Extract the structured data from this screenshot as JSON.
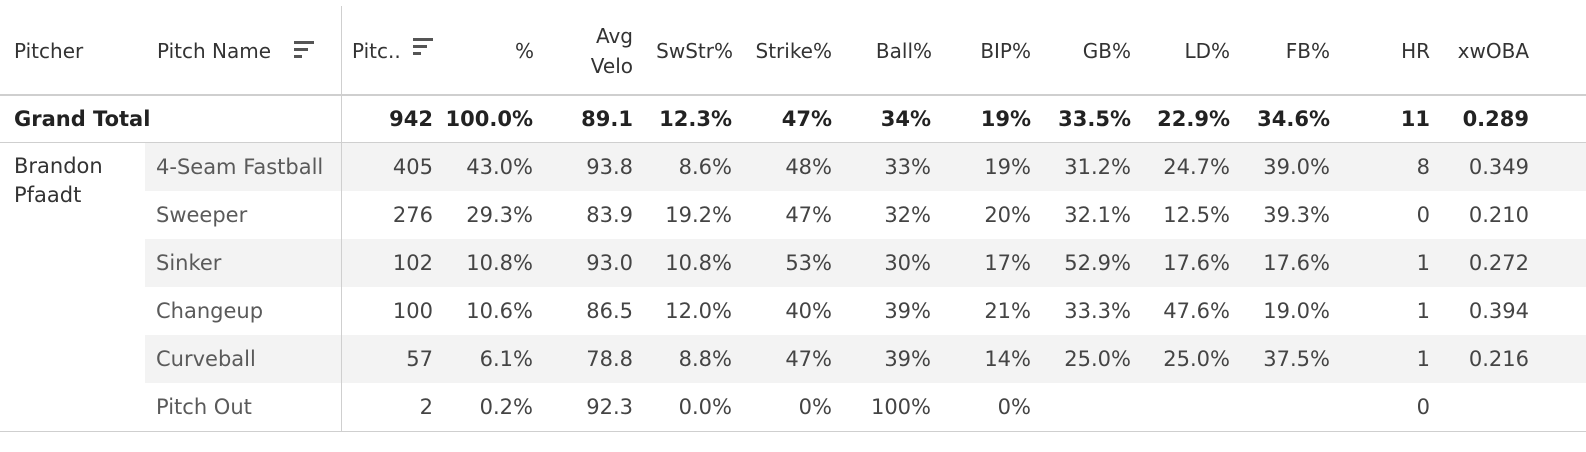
{
  "chart_data": {
    "type": "table",
    "headers": {
      "pitcher": "Pitcher",
      "pitch_name": "Pitch Name",
      "pitches": "Pitc..",
      "pct": "%",
      "avg_velo_1": "Avg",
      "avg_velo_2": "Velo",
      "swstr": "SwStr%",
      "strike": "Strike%",
      "ball": "Ball%",
      "bip": "BIP%",
      "gb": "GB%",
      "ld": "LD%",
      "fb": "FB%",
      "hr": "HR",
      "xwoba": "xwOBA"
    },
    "columns": [
      "pitches",
      "pct",
      "velo",
      "swstr",
      "strike",
      "ball",
      "bip",
      "gb",
      "ld",
      "fb",
      "hr",
      "xwoba"
    ],
    "grand_total": {
      "label": "Grand Total",
      "pitches": "942",
      "pct": "100.0%",
      "velo": "89.1",
      "swstr": "12.3%",
      "strike": "47%",
      "ball": "34%",
      "bip": "19%",
      "gb": "33.5%",
      "ld": "22.9%",
      "fb": "34.6%",
      "hr": "11",
      "xwoba": "0.289"
    },
    "pitcher_name_line1": "Brandon",
    "pitcher_name_line2": "Pfaadt",
    "rows": [
      {
        "name": "4-Seam Fastball",
        "pitches": "405",
        "pct": "43.0%",
        "velo": "93.8",
        "swstr": "8.6%",
        "strike": "48%",
        "ball": "33%",
        "bip": "19%",
        "gb": "31.2%",
        "ld": "24.7%",
        "fb": "39.0%",
        "hr": "8",
        "xwoba": "0.349"
      },
      {
        "name": "Sweeper",
        "pitches": "276",
        "pct": "29.3%",
        "velo": "83.9",
        "swstr": "19.2%",
        "strike": "47%",
        "ball": "32%",
        "bip": "20%",
        "gb": "32.1%",
        "ld": "12.5%",
        "fb": "39.3%",
        "hr": "0",
        "xwoba": "0.210"
      },
      {
        "name": "Sinker",
        "pitches": "102",
        "pct": "10.8%",
        "velo": "93.0",
        "swstr": "10.8%",
        "strike": "53%",
        "ball": "30%",
        "bip": "17%",
        "gb": "52.9%",
        "ld": "17.6%",
        "fb": "17.6%",
        "hr": "1",
        "xwoba": "0.272"
      },
      {
        "name": "Changeup",
        "pitches": "100",
        "pct": "10.6%",
        "velo": "86.5",
        "swstr": "12.0%",
        "strike": "40%",
        "ball": "39%",
        "bip": "21%",
        "gb": "33.3%",
        "ld": "47.6%",
        "fb": "19.0%",
        "hr": "1",
        "xwoba": "0.394"
      },
      {
        "name": "Curveball",
        "pitches": "57",
        "pct": "6.1%",
        "velo": "78.8",
        "swstr": "8.8%",
        "strike": "47%",
        "ball": "39%",
        "bip": "14%",
        "gb": "25.0%",
        "ld": "25.0%",
        "fb": "37.5%",
        "hr": "1",
        "xwoba": "0.216"
      },
      {
        "name": "Pitch Out",
        "pitches": "2",
        "pct": "0.2%",
        "velo": "92.3",
        "swstr": "0.0%",
        "strike": "0%",
        "ball": "100%",
        "bip": "0%",
        "gb": "",
        "ld": "",
        "fb": "",
        "hr": "0",
        "xwoba": ""
      }
    ]
  }
}
